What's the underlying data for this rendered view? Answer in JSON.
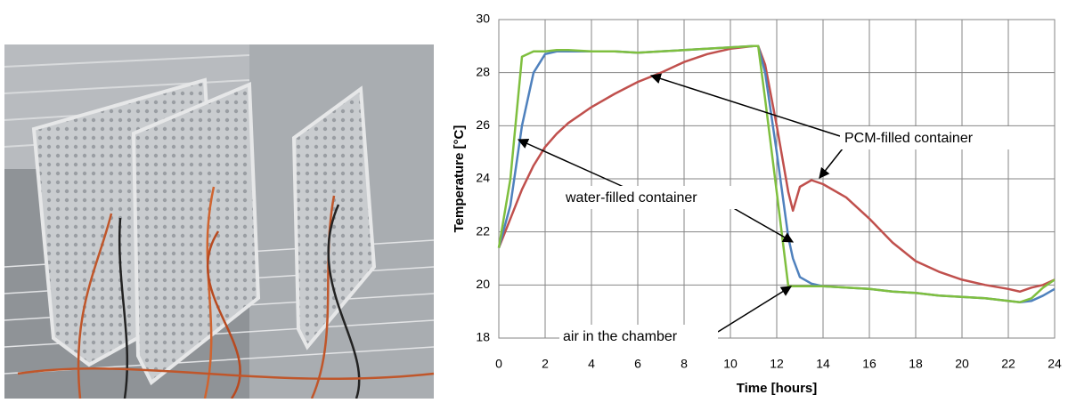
{
  "chart_data": {
    "type": "line",
    "x_label": "Time [hours]",
    "y_label": "Temperature [°C]",
    "x": [
      0,
      0.5,
      1,
      1.5,
      2,
      2.5,
      3,
      4,
      5,
      6,
      7,
      8,
      9,
      10,
      11,
      11.2,
      11.5,
      12,
      12.5,
      12.7,
      13,
      13.5,
      14,
      15,
      16,
      17,
      18,
      19,
      20,
      21,
      22,
      22.5,
      23,
      23.5,
      24
    ],
    "series": [
      {
        "name": "PCM-filled container",
        "color": "#c0504d",
        "values": [
          21.4,
          22.5,
          23.6,
          24.5,
          25.2,
          25.7,
          26.1,
          26.7,
          27.2,
          27.65,
          28.0,
          28.4,
          28.7,
          28.9,
          29.0,
          29.0,
          28.3,
          26,
          23.5,
          22.8,
          23.7,
          23.95,
          23.8,
          23.3,
          22.5,
          21.6,
          20.9,
          20.5,
          20.2,
          20.0,
          19.85,
          19.75,
          19.9,
          20.0,
          20.2
        ]
      },
      {
        "name": "water-filled container",
        "color": "#4f81bd",
        "values": [
          21.4,
          23,
          26,
          28,
          28.7,
          28.8,
          28.8,
          28.8,
          28.8,
          28.75,
          28.8,
          28.85,
          28.9,
          28.95,
          29.0,
          29.0,
          28,
          25,
          21.8,
          21,
          20.3,
          20.05,
          19.95,
          19.9,
          19.85,
          19.75,
          19.7,
          19.6,
          19.55,
          19.5,
          19.4,
          19.35,
          19.4,
          19.6,
          19.85
        ]
      },
      {
        "name": "air in the chamber",
        "color": "#7fbf3f",
        "values": [
          21.4,
          24,
          28.6,
          28.8,
          28.8,
          28.85,
          28.85,
          28.8,
          28.8,
          28.75,
          28.8,
          28.85,
          28.9,
          28.95,
          29.0,
          29.0,
          27,
          23.5,
          19.95,
          19.95,
          19.95,
          19.95,
          19.95,
          19.9,
          19.85,
          19.75,
          19.7,
          19.6,
          19.55,
          19.5,
          19.4,
          19.35,
          19.5,
          19.9,
          20.2
        ]
      }
    ],
    "xlim": [
      0,
      24
    ],
    "xticks": [
      0,
      2,
      4,
      6,
      8,
      10,
      12,
      14,
      16,
      18,
      20,
      22,
      24
    ],
    "ylim": [
      18,
      30
    ],
    "yticks": [
      18,
      20,
      22,
      24,
      26,
      28,
      30
    ],
    "grid": true
  }
}
